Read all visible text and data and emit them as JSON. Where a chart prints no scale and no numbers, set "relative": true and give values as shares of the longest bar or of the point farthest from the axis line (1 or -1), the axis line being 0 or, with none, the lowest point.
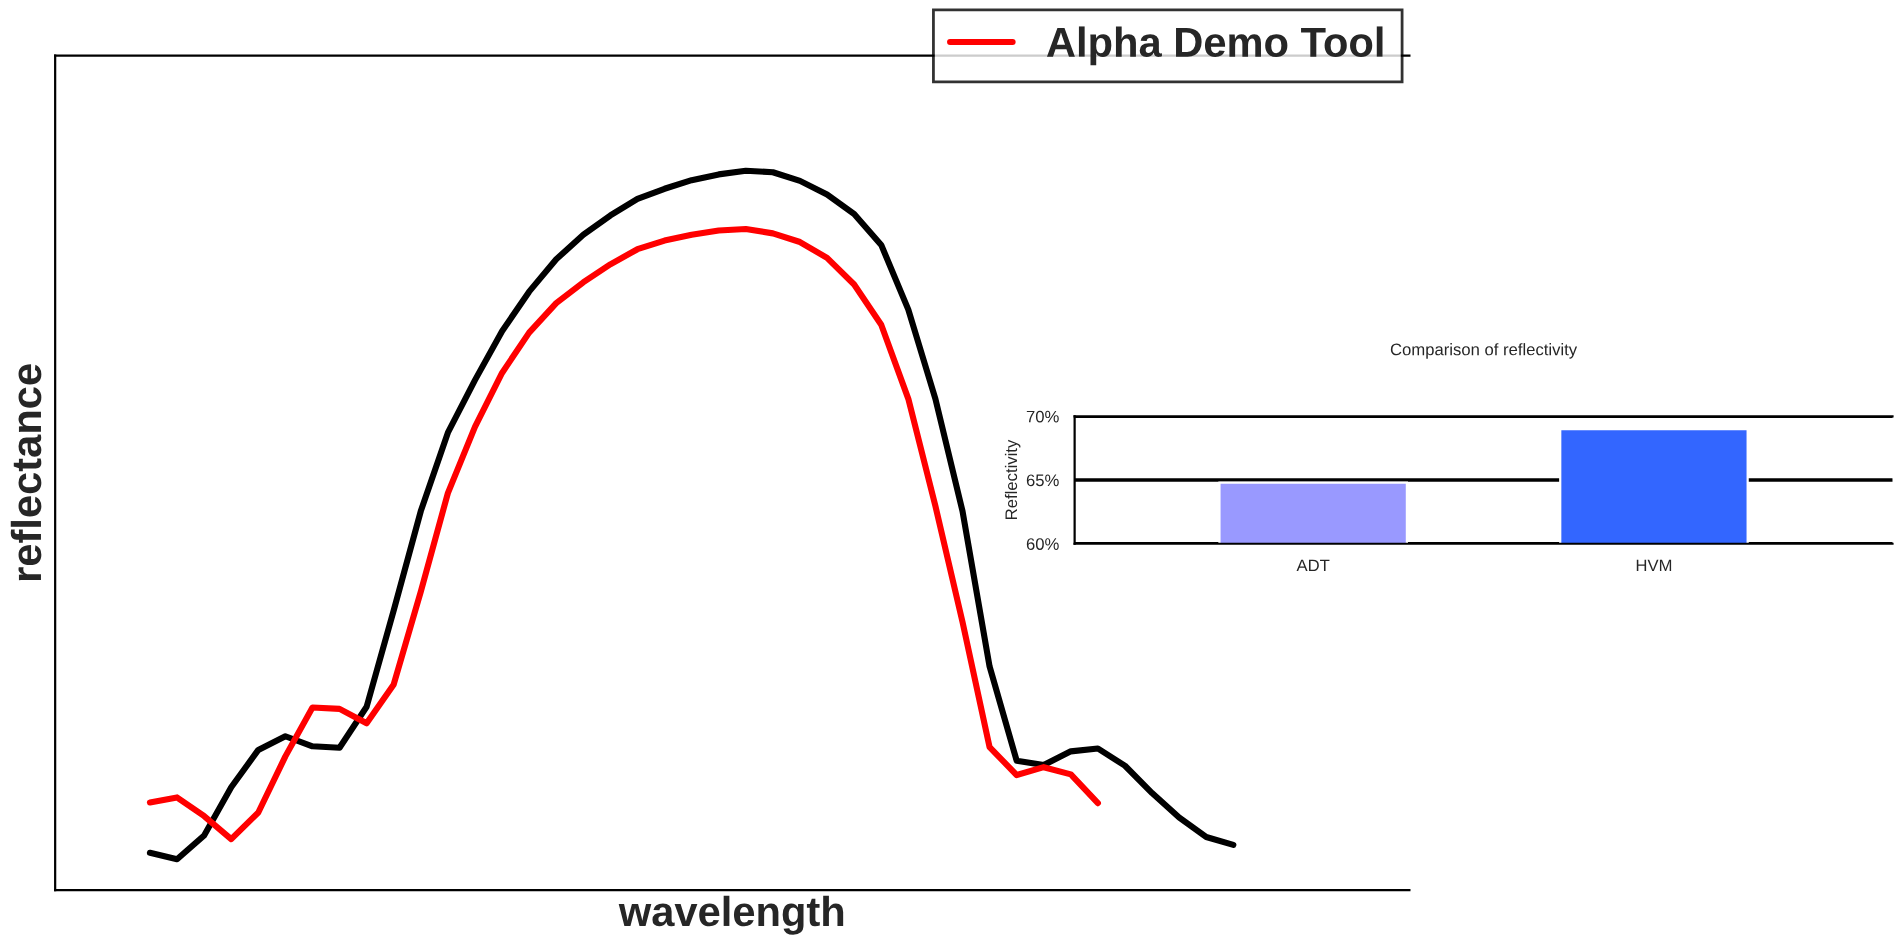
{
  "chart_data": [
    {
      "type": "line",
      "relative": true,
      "xlabel": "wavelength",
      "ylabel": "reflectance",
      "categories": [
        null,
        null,
        null,
        null,
        null,
        null,
        null,
        null,
        null,
        null,
        null,
        null,
        null,
        null,
        null,
        null,
        null,
        null,
        null,
        null,
        null,
        null,
        null,
        null,
        null,
        null,
        null,
        null,
        null,
        null,
        null,
        null,
        null,
        null,
        null,
        null,
        null,
        null,
        null,
        null,
        null
      ],
      "tick_labels": false,
      "grid": false,
      "legend": "top right",
      "series": [
        {
          "color": "#000000",
          "values": [
            0.052,
            0.043,
            0.076,
            0.143,
            0.195,
            0.214,
            0.2,
            0.198,
            0.255,
            0.389,
            0.527,
            0.636,
            0.709,
            0.777,
            0.832,
            0.877,
            0.911,
            0.938,
            0.961,
            0.975,
            0.987,
            0.995,
            1.0,
            0.998,
            0.986,
            0.967,
            0.94,
            0.897,
            0.807,
            0.683,
            0.527,
            0.311,
            0.18,
            0.174,
            0.193,
            0.197,
            0.173,
            0.135,
            0.101,
            0.074,
            0.063
          ]
        },
        {
          "name": "Alpha Demo Tool",
          "color": "#ff0000",
          "values": [
            0.122,
            0.129,
            0.103,
            0.071,
            0.108,
            0.186,
            0.254,
            0.252,
            0.232,
            0.286,
            0.415,
            0.552,
            0.644,
            0.719,
            0.775,
            0.816,
            0.845,
            0.87,
            0.891,
            0.903,
            0.911,
            0.917,
            0.919,
            0.913,
            0.901,
            0.879,
            0.842,
            0.786,
            0.683,
            0.534,
            0.373,
            0.199,
            0.16,
            0.171,
            0.161,
            0.121,
            null,
            null,
            null,
            null,
            null
          ]
        }
      ]
    },
    {
      "type": "bar",
      "title": "Comparison of reflectivity",
      "ylabel": "Reflectivity",
      "categories": [
        "ADT",
        "HVM"
      ],
      "ylim": [
        60,
        70
      ],
      "yticks": [
        {
          "value": 60,
          "label": "60%"
        },
        {
          "value": 65,
          "label": "65%"
        },
        {
          "value": 70,
          "label": "70%"
        }
      ],
      "grid": "y",
      "series": [
        {
          "colors": [
            "#9999ff",
            "#3366ff"
          ],
          "values": [
            64.8,
            69.0
          ]
        }
      ]
    }
  ]
}
